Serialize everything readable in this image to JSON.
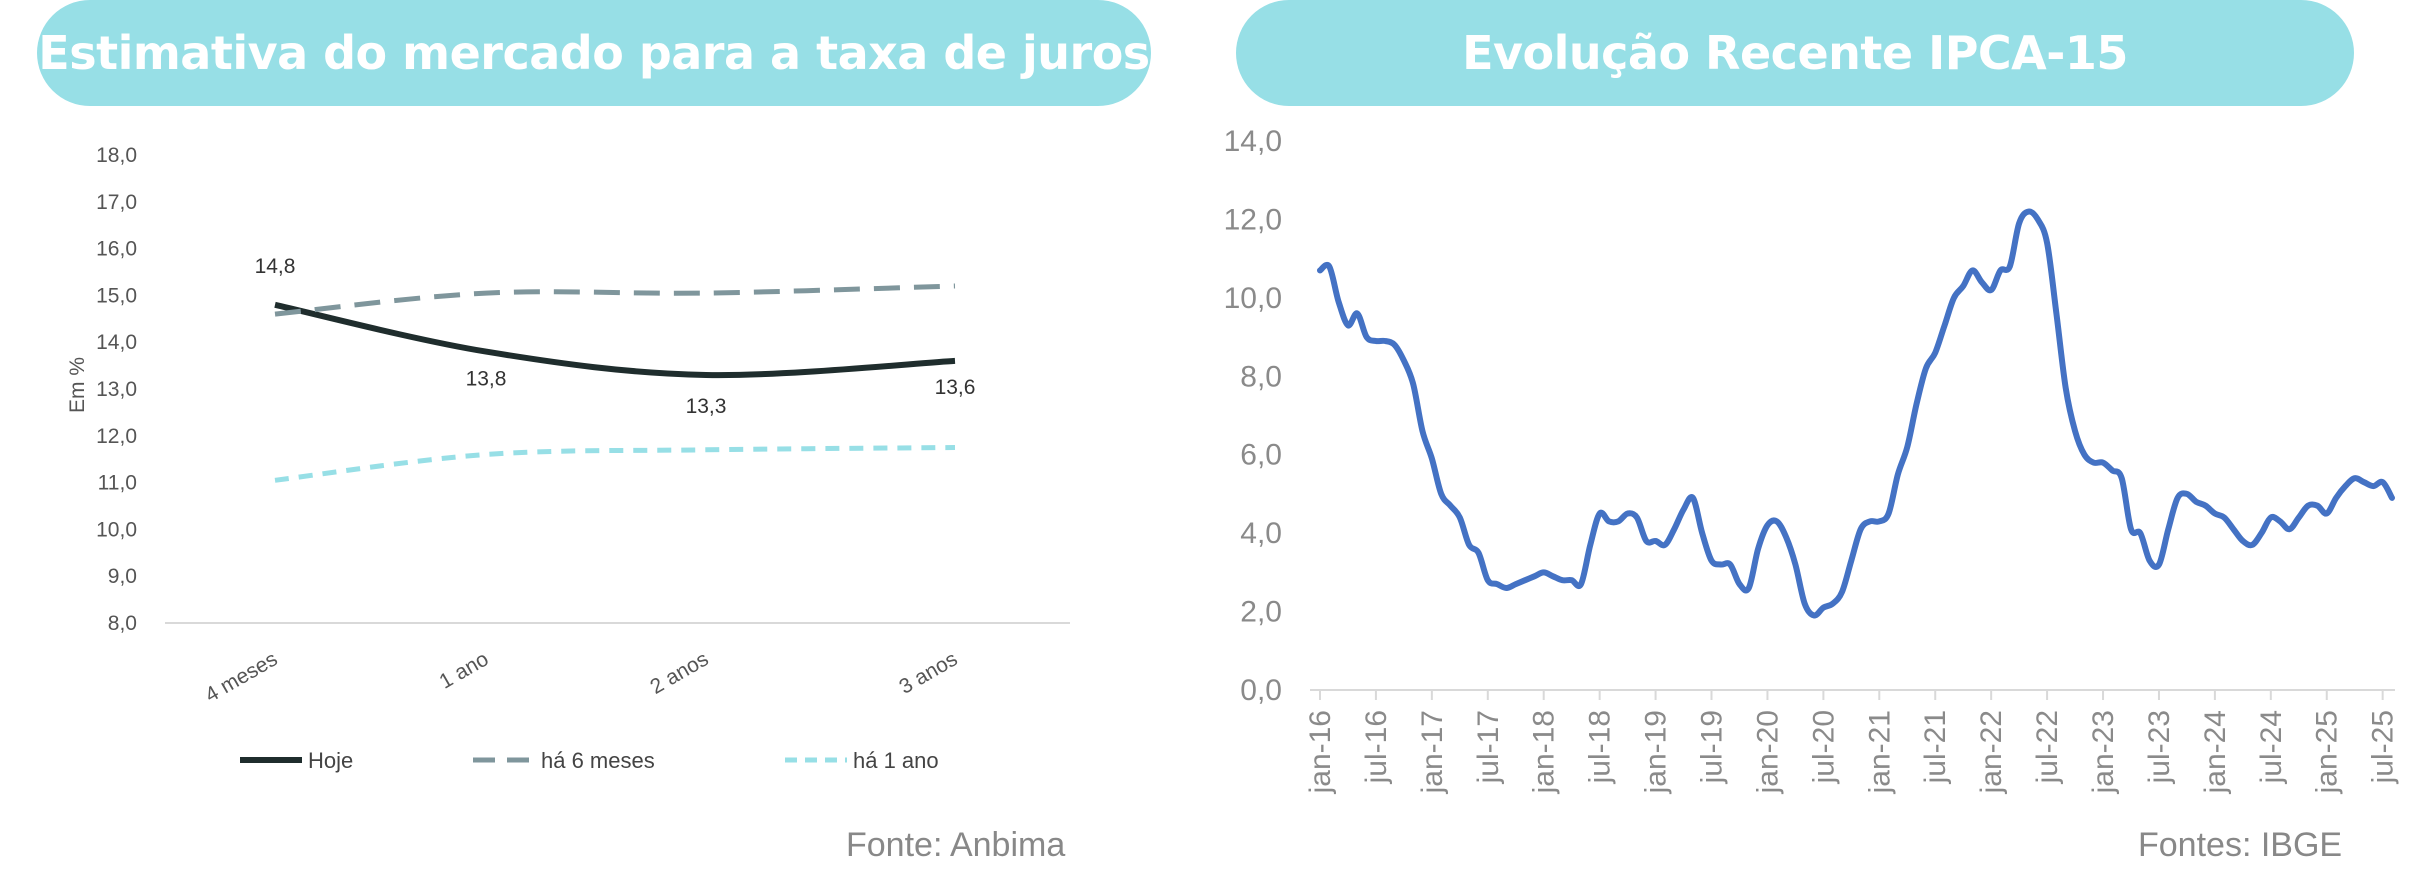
{
  "left_panel": {
    "title": "Estimativa do mercado para a taxa de juros",
    "source": "Fonte: Anbima"
  },
  "right_panel": {
    "title": "Evolução Recente IPCA-15",
    "source": "Fontes: IBGE"
  },
  "chart_data": [
    {
      "type": "line",
      "title": "Estimativa do mercado para a taxa de juros",
      "xlabel": "",
      "ylabel": "Em %",
      "ylim": [
        8.0,
        18.0
      ],
      "yticks": [
        "8,0",
        "9,0",
        "10,0",
        "11,0",
        "12,0",
        "13,0",
        "14,0",
        "15,0",
        "16,0",
        "17,0",
        "18,0"
      ],
      "categories": [
        "4 meses",
        "1 ano",
        "2 anos",
        "3 anos"
      ],
      "series": [
        {
          "name": "Hoje",
          "values": [
            14.8,
            13.8,
            13.3,
            13.6
          ],
          "color": "#1F2D2D",
          "style": "solid",
          "labels": [
            "14,8",
            "13,8",
            "13,3",
            "13,6"
          ]
        },
        {
          "name": "há 6 meses",
          "values": [
            14.6,
            15.05,
            15.05,
            15.2
          ],
          "color": "#7F969C",
          "style": "dashed"
        },
        {
          "name": "há 1 ano",
          "values": [
            11.05,
            11.6,
            11.7,
            11.75
          ],
          "color": "#97DFE6",
          "style": "dashed"
        }
      ],
      "legend": "bottom",
      "grid": false
    },
    {
      "type": "line",
      "title": "Evolução Recente IPCA-15",
      "xlabel": "",
      "ylabel": "",
      "ylim": [
        0.0,
        14.0
      ],
      "yticks": [
        "0,0",
        "2,0",
        "4,0",
        "6,0",
        "8,0",
        "10,0",
        "12,0",
        "14,0"
      ],
      "x_start": "2016-01",
      "x_end": "2025-07",
      "xtick_labels": [
        "jan-16",
        "jul-16",
        "jan-17",
        "jul-17",
        "jan-18",
        "jul-18",
        "jan-19",
        "jul-19",
        "jan-20",
        "jul-20",
        "jan-21",
        "jul-21",
        "jan-22",
        "jul-22",
        "jan-23",
        "jul-23",
        "jan-24",
        "jul-24",
        "jan-25",
        "jul-25"
      ],
      "series": [
        {
          "name": "IPCA-15",
          "color": "#4472C4",
          "values": [
            10.7,
            10.8,
            9.9,
            9.3,
            9.6,
            9.0,
            8.9,
            8.9,
            8.8,
            8.4,
            7.8,
            6.6,
            5.9,
            5.0,
            4.7,
            4.4,
            3.7,
            3.5,
            2.8,
            2.7,
            2.6,
            2.7,
            2.8,
            2.9,
            3.0,
            2.9,
            2.8,
            2.8,
            2.7,
            3.7,
            4.5,
            4.3,
            4.3,
            4.5,
            4.4,
            3.8,
            3.8,
            3.7,
            4.1,
            4.6,
            4.9,
            4.0,
            3.3,
            3.2,
            3.2,
            2.7,
            2.6,
            3.6,
            4.2,
            4.3,
            3.9,
            3.2,
            2.2,
            1.9,
            2.1,
            2.2,
            2.5,
            3.3,
            4.1,
            4.3,
            4.3,
            4.5,
            5.5,
            6.2,
            7.3,
            8.2,
            8.6,
            9.3,
            10.0,
            10.3,
            10.7,
            10.4,
            10.2,
            10.7,
            10.8,
            11.9,
            12.2,
            12.0,
            11.4,
            9.6,
            7.7,
            6.6,
            6.0,
            5.8,
            5.8,
            5.6,
            5.4,
            4.1,
            4.0,
            3.3,
            3.2,
            4.1,
            4.9,
            5.0,
            4.8,
            4.7,
            4.5,
            4.4,
            4.1,
            3.8,
            3.7,
            4.0,
            4.4,
            4.3,
            4.1,
            4.4,
            4.7,
            4.7,
            4.5,
            4.9,
            5.2,
            5.4,
            5.3,
            5.2,
            5.3,
            4.9
          ]
        }
      ],
      "legend": "none",
      "grid": false
    }
  ]
}
